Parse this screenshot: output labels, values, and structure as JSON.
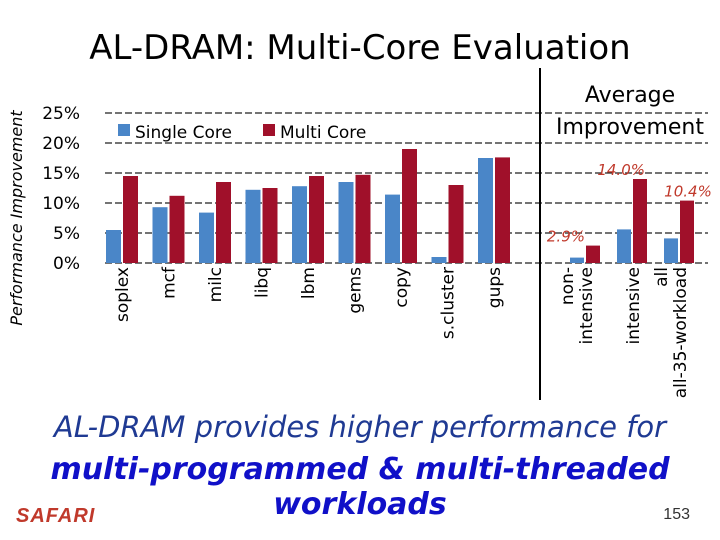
{
  "slide": {
    "title": "AL-DRAM: Multi-Core Evaluation",
    "caption_line1": "AL-DRAM provides higher performance for",
    "caption_line2": "multi-programmed & multi-threaded workloads",
    "logo": "SAFARI",
    "page_number": "153"
  },
  "chart_data": {
    "type": "bar",
    "ylabel": "Performance Improvement",
    "ylim": [
      0,
      25
    ],
    "yticks": [
      "0%",
      "5%",
      "10%",
      "15%",
      "20%",
      "25%"
    ],
    "grid": true,
    "legend_position": "top-left",
    "categories": [
      "soplex",
      "mcf",
      "milc",
      "libq",
      "lbm",
      "gems",
      "copy",
      "s.cluster",
      "gups"
    ],
    "series": [
      {
        "name": "Single Core",
        "color": "#4a86c8",
        "values": [
          5.5,
          9.3,
          8.4,
          12.2,
          12.8,
          13.5,
          11.4,
          1.0,
          17.5
        ]
      },
      {
        "name": "Multi Core",
        "color": "#a0102a",
        "values": [
          14.5,
          11.2,
          13.5,
          12.5,
          14.5,
          14.7,
          19.0,
          13.0,
          17.6
        ]
      }
    ],
    "average_panel": {
      "title_line1": "Average",
      "title_line2": "Improvement",
      "categories": [
        "non-intensive",
        "intensive",
        "all-35-workload"
      ],
      "category_lines": [
        [
          "non-",
          "intensive"
        ],
        [
          "intensive"
        ],
        [
          "all",
          "all-35-workload"
        ]
      ],
      "single_values": [
        0.9,
        5.6,
        4.1
      ],
      "multi_values": [
        2.9,
        14.0,
        10.4
      ],
      "labels": [
        "2.9%",
        "14.0%",
        "10.4%"
      ],
      "label_color": "#c0392b"
    }
  }
}
